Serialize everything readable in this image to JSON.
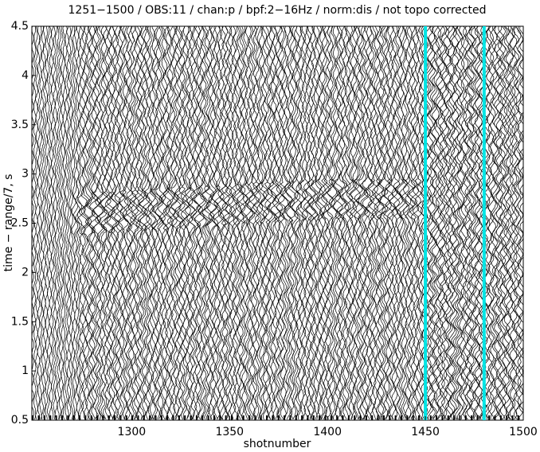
{
  "chart_data": {
    "type": "wiggle",
    "title": "1251−1500 / OBS:11 / chan:p / bpf:2−16Hz / norm:dis / not topo corrected",
    "xlabel": "shotnumber",
    "ylabel": "time − range/7, s",
    "xlim": [
      1249,
      1500
    ],
    "xticks": [
      1300,
      1350,
      1400,
      1450,
      1500
    ],
    "ylim": [
      0.5,
      4.5
    ],
    "yticks": [
      0.5,
      1,
      1.5,
      2,
      2.5,
      3,
      3.5,
      4,
      4.5
    ],
    "highlighted_traces": [
      1450,
      1480
    ],
    "highlight_color": "#00e5e5"
  }
}
